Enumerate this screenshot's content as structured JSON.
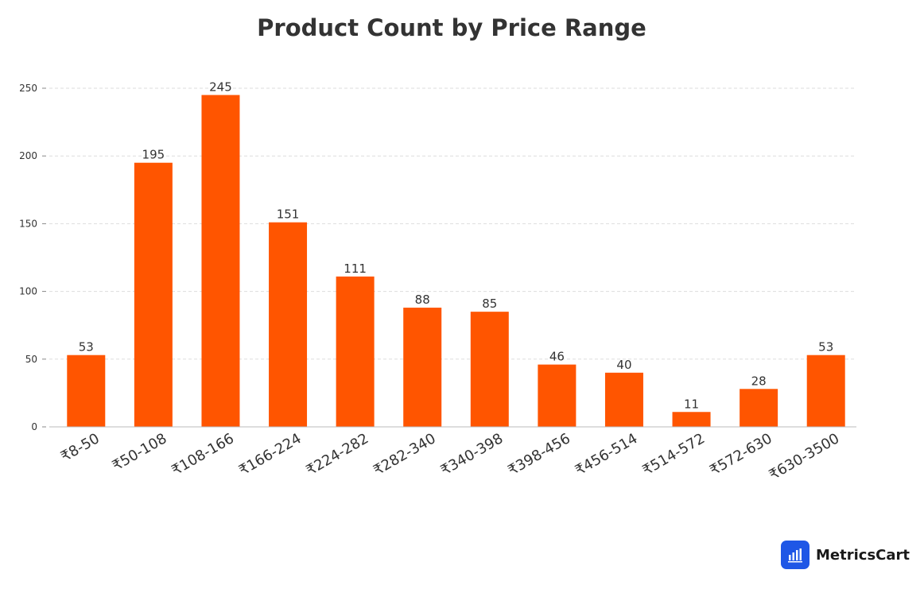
{
  "chart_data": {
    "type": "bar",
    "title": "Product Count by Price Range",
    "xlabel": "",
    "ylabel": "",
    "categories": [
      "₹8-50",
      "₹50-108",
      "₹108-166",
      "₹166-224",
      "₹224-282",
      "₹282-340",
      "₹340-398",
      "₹398-456",
      "₹456-514",
      "₹514-572",
      "₹572-630",
      "₹630-3500"
    ],
    "values": [
      53,
      195,
      245,
      151,
      111,
      88,
      85,
      46,
      40,
      11,
      28,
      53
    ],
    "ylim": [
      0,
      250
    ],
    "yticks": [
      0,
      50,
      100,
      150,
      200,
      250
    ],
    "grid": true,
    "bar_color": "#ff5500",
    "data_labels": true
  },
  "brand": {
    "name": "MetricsCart",
    "icon": "bar-chart-icon",
    "color": "#1f57e6"
  }
}
